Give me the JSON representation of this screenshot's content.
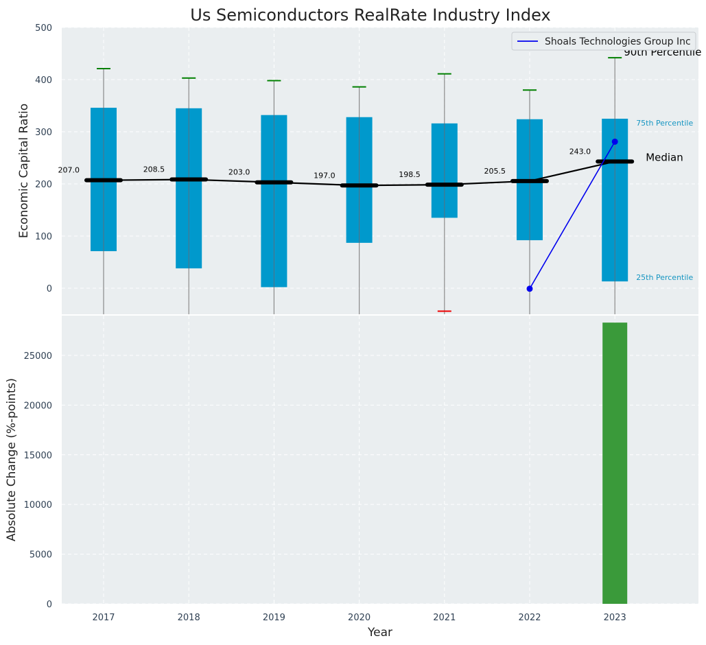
{
  "chart_data": [
    {
      "type": "box",
      "title": "Us Semiconductors RealRate Industry Index",
      "xlabel": "",
      "ylabel": "Economic Capital Ratio",
      "ylim": [
        -50,
        500
      ],
      "yticks": [
        "0",
        "100",
        "200",
        "300",
        "400",
        "500"
      ],
      "grid": true,
      "categories": [
        "2017",
        "2018",
        "2019",
        "2020",
        "2021",
        "2022",
        "2023"
      ],
      "boxes": [
        {
          "year": "2017",
          "p25": 71,
          "median": 207.0,
          "p75": 346,
          "p90": 421,
          "p10": null,
          "median_label": "207.0"
        },
        {
          "year": "2018",
          "p25": 38,
          "median": 208.5,
          "p75": 345,
          "p90": 403,
          "p10": null,
          "median_label": "208.5"
        },
        {
          "year": "2019",
          "p25": 2,
          "median": 203.0,
          "p75": 332,
          "p90": 398,
          "p10": null,
          "median_label": "203.0"
        },
        {
          "year": "2020",
          "p25": 87,
          "median": 197.0,
          "p75": 328,
          "p90": 386,
          "p10": null,
          "median_label": "197.0"
        },
        {
          "year": "2021",
          "p25": 135,
          "median": 198.5,
          "p75": 316,
          "p90": 411,
          "p10": -44,
          "median_label": "198.5"
        },
        {
          "year": "2022",
          "p25": 92,
          "median": 205.5,
          "p75": 324,
          "p90": 380,
          "p10": null,
          "median_label": "205.5"
        },
        {
          "year": "2023",
          "p25": 13,
          "median": 243.0,
          "p75": 325,
          "p90": 442,
          "p10": null,
          "median_label": "243.0"
        }
      ],
      "series": [
        {
          "name": "Shoals Technologies Group Inc",
          "x": [
            "2022",
            "2023"
          ],
          "values": [
            -1,
            281
          ]
        }
      ],
      "annotations": {
        "p90": "90th Percentile",
        "p75": "75th Percentile",
        "median": "Median",
        "p25": "25th Percentile"
      },
      "legend": {
        "position": "top-right",
        "entries": [
          "Shoals Technologies Group Inc"
        ]
      },
      "colors": {
        "box": "#0099cc",
        "median_line": "#000000",
        "company": "#0000ee",
        "whisker_cap_top": "#008000",
        "whisker_cap_bottom": "#ee0000",
        "plot_bg": "#eaeef0"
      }
    },
    {
      "type": "bar",
      "xlabel": "Year",
      "ylabel": "Absolute Change (%-points)",
      "ylim": [
        0,
        29000
      ],
      "yticks": [
        "0",
        "5000",
        "10000",
        "15000",
        "20000",
        "25000"
      ],
      "grid": true,
      "categories": [
        "2017",
        "2018",
        "2019",
        "2020",
        "2021",
        "2022",
        "2023"
      ],
      "values": [
        null,
        null,
        null,
        null,
        null,
        null,
        28300
      ],
      "colors": {
        "bar": "#3a9a3a"
      }
    }
  ]
}
